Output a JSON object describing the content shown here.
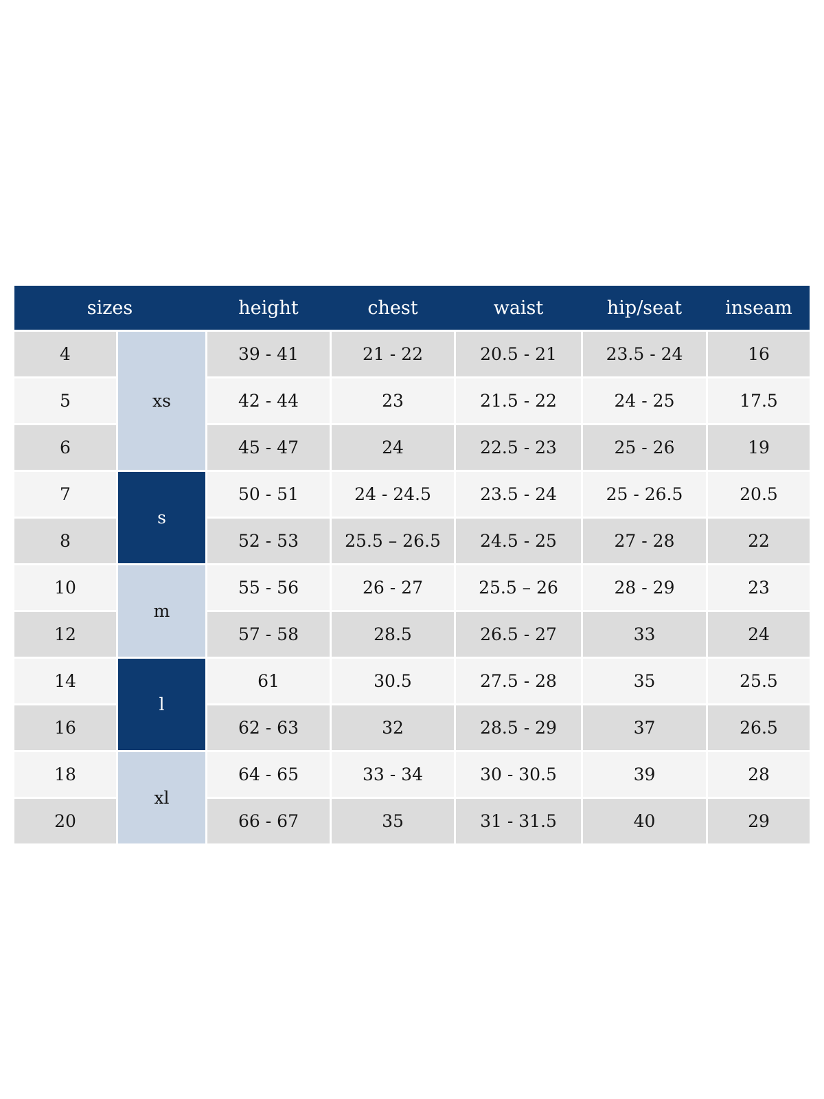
{
  "chart_data": {
    "type": "table",
    "header": {
      "sizes": "sizes",
      "height": "height",
      "chest": "chest",
      "waist": "waist",
      "hip_seat": "hip/seat",
      "inseam": "inseam"
    },
    "groups": {
      "xs": "xs",
      "s": "s",
      "m": "m",
      "l": "l",
      "xl": "xl"
    },
    "group_spans": {
      "xs": [
        "4",
        "5",
        "6"
      ],
      "s": [
        "7",
        "8"
      ],
      "m": [
        "10",
        "12"
      ],
      "l": [
        "14",
        "16"
      ],
      "xl": [
        "18",
        "20"
      ]
    },
    "rows": [
      {
        "size": "4",
        "height": "39 - 41",
        "chest": "21 - 22",
        "waist": "20.5 - 21",
        "hip_seat": "23.5 - 24",
        "inseam": "16"
      },
      {
        "size": "5",
        "height": "42 - 44",
        "chest": "23",
        "waist": "21.5 - 22",
        "hip_seat": "24 - 25",
        "inseam": "17.5"
      },
      {
        "size": "6",
        "height": "45 - 47",
        "chest": "24",
        "waist": "22.5 - 23",
        "hip_seat": "25 - 26",
        "inseam": "19"
      },
      {
        "size": "7",
        "height": "50 - 51",
        "chest": "24 - 24.5",
        "waist": "23.5 - 24",
        "hip_seat": "25 - 26.5",
        "inseam": "20.5"
      },
      {
        "size": "8",
        "height": "52 - 53",
        "chest": "25.5 – 26.5",
        "waist": "24.5 - 25",
        "hip_seat": "27 - 28",
        "inseam": "22"
      },
      {
        "size": "10",
        "height": "55 - 56",
        "chest": "26 - 27",
        "waist": "25.5 – 26",
        "hip_seat": "28 - 29",
        "inseam": "23"
      },
      {
        "size": "12",
        "height": "57 - 58",
        "chest": "28.5",
        "waist": "26.5 - 27",
        "hip_seat": "33",
        "inseam": "24"
      },
      {
        "size": "14",
        "height": "61",
        "chest": "30.5",
        "waist": "27.5 - 28",
        "hip_seat": "35",
        "inseam": "25.5"
      },
      {
        "size": "16",
        "height": "62 - 63",
        "chest": "32",
        "waist": "28.5 - 29",
        "hip_seat": "37",
        "inseam": "26.5"
      },
      {
        "size": "18",
        "height": "64 - 65",
        "chest": "33 - 34",
        "waist": "30 - 30.5",
        "hip_seat": "39",
        "inseam": "28"
      },
      {
        "size": "20",
        "height": "66 - 67",
        "chest": "35",
        "waist": "31 - 31.5",
        "hip_seat": "40",
        "inseam": "29"
      }
    ],
    "colors": {
      "header_bg": "#0d3a70",
      "header_text": "#ffffff",
      "group_dark_bg": "#0d3a70",
      "group_light_bg": "#c9d5e4",
      "row_gray_bg": "#dcdcdc",
      "row_light_bg": "#f4f4f4",
      "cell_text": "#151515",
      "page_bg": "#ffffff"
    }
  }
}
